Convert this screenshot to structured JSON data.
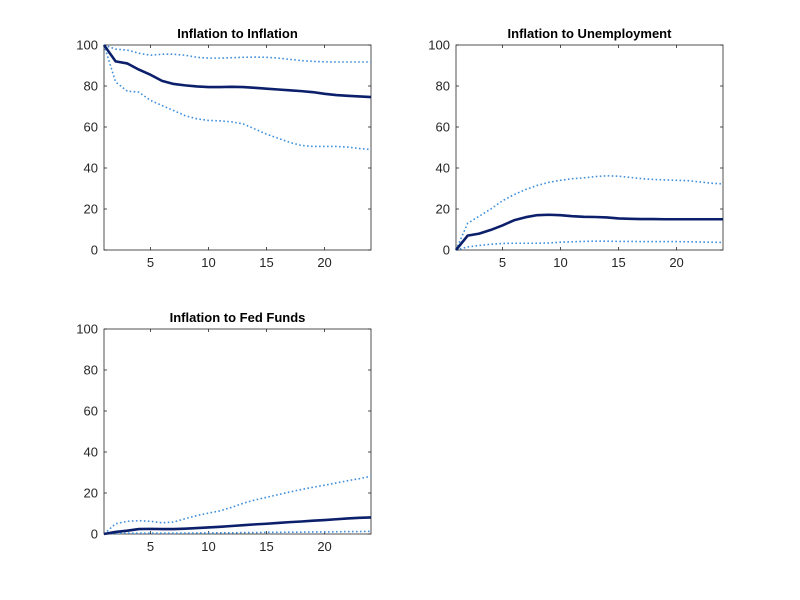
{
  "figure": {
    "background": "#ffffff"
  },
  "chart_data": [
    {
      "type": "line",
      "title": "Inflation to Inflation",
      "xlabel": "",
      "ylabel": "",
      "xlim": [
        1,
        24
      ],
      "ylim": [
        0,
        100
      ],
      "xticks": [
        5,
        10,
        15,
        20
      ],
      "yticks": [
        0,
        20,
        40,
        60,
        80,
        100
      ],
      "grid": false,
      "x": [
        1,
        2,
        3,
        4,
        5,
        6,
        7,
        8,
        9,
        10,
        11,
        12,
        13,
        14,
        15,
        16,
        17,
        18,
        19,
        20,
        21,
        22,
        23,
        24
      ],
      "series": [
        {
          "role": "response",
          "style": "solid",
          "color": "#0b1f6b",
          "values": [
            100,
            92,
            91,
            88,
            85.5,
            82.5,
            81,
            80.3,
            79.8,
            79.5,
            79.5,
            79.6,
            79.5,
            79.1,
            78.7,
            78.3,
            77.9,
            77.5,
            77,
            76.2,
            75.6,
            75.2,
            74.9,
            74.6
          ]
        },
        {
          "role": "upper-band",
          "style": "dotted",
          "color": "#3f8fdc",
          "values": [
            100,
            98,
            97.5,
            96,
            95,
            95.5,
            95.5,
            95,
            94,
            93.6,
            93.6,
            93.8,
            94,
            94.1,
            94,
            93.6,
            93,
            92.4,
            92,
            91.8,
            91.7,
            91.7,
            91.7,
            91.7
          ]
        },
        {
          "role": "lower-band",
          "style": "dotted",
          "color": "#3f8fdc",
          "values": [
            100,
            82,
            77.5,
            77,
            73,
            70.5,
            68,
            65.5,
            64,
            63.2,
            63,
            62.5,
            61.5,
            59,
            56.5,
            54.5,
            52.5,
            51,
            50.5,
            50.5,
            50.5,
            50.2,
            49.5,
            49
          ]
        }
      ]
    },
    {
      "type": "line",
      "title": "Inflation to Unemployment",
      "xlabel": "",
      "ylabel": "",
      "xlim": [
        1,
        24
      ],
      "ylim": [
        0,
        100
      ],
      "xticks": [
        5,
        10,
        15,
        20
      ],
      "yticks": [
        0,
        20,
        40,
        60,
        80,
        100
      ],
      "grid": false,
      "x": [
        1,
        2,
        3,
        4,
        5,
        6,
        7,
        8,
        9,
        10,
        11,
        12,
        13,
        14,
        15,
        16,
        17,
        18,
        19,
        20,
        21,
        22,
        23,
        24
      ],
      "series": [
        {
          "role": "response",
          "style": "solid",
          "color": "#0b1f6b",
          "values": [
            0,
            7,
            8,
            9.8,
            12,
            14.5,
            16,
            17,
            17.2,
            17,
            16.5,
            16.2,
            16.1,
            15.9,
            15.4,
            15.2,
            15.1,
            15.1,
            15,
            15,
            15,
            15,
            15,
            15
          ]
        },
        {
          "role": "upper-band",
          "style": "dotted",
          "color": "#3f8fdc",
          "values": [
            0,
            13,
            16.5,
            20,
            24,
            27,
            29.5,
            31.5,
            33,
            34,
            34.8,
            35.2,
            35.8,
            36.2,
            36,
            35.4,
            34.8,
            34.4,
            34.2,
            34,
            33.8,
            33.2,
            32.6,
            32.2
          ]
        },
        {
          "role": "lower-band",
          "style": "dotted",
          "color": "#3f8fdc",
          "values": [
            0,
            1.5,
            2.2,
            2.8,
            3.2,
            3.3,
            3.3,
            3.3,
            3.4,
            3.8,
            4,
            4.2,
            4.3,
            4.3,
            4.2,
            4.2,
            4.1,
            4.1,
            4.1,
            4.1,
            4,
            3.9,
            3.8,
            3.7
          ]
        }
      ]
    },
    {
      "type": "line",
      "title": "Inflation to Fed Funds",
      "xlabel": "",
      "ylabel": "",
      "xlim": [
        1,
        24
      ],
      "ylim": [
        0,
        100
      ],
      "xticks": [
        5,
        10,
        15,
        20
      ],
      "yticks": [
        0,
        20,
        40,
        60,
        80,
        100
      ],
      "grid": false,
      "x": [
        1,
        2,
        3,
        4,
        5,
        6,
        7,
        8,
        9,
        10,
        11,
        12,
        13,
        14,
        15,
        16,
        17,
        18,
        19,
        20,
        21,
        22,
        23,
        24
      ],
      "series": [
        {
          "role": "response",
          "style": "solid",
          "color": "#0b1f6b",
          "values": [
            0,
            1,
            1.6,
            2.4,
            2.5,
            2.4,
            2.4,
            2.6,
            2.9,
            3.2,
            3.5,
            3.9,
            4.3,
            4.7,
            5,
            5.4,
            5.8,
            6.1,
            6.5,
            6.8,
            7.2,
            7.6,
            7.9,
            8.1
          ]
        },
        {
          "role": "upper-band",
          "style": "dotted",
          "color": "#3f8fdc",
          "values": [
            0,
            5,
            6.2,
            6.5,
            6.2,
            5.5,
            5.8,
            7.5,
            9,
            10.2,
            11.3,
            13,
            15,
            16.6,
            17.9,
            19.2,
            20.5,
            21.7,
            22.8,
            23.8,
            24.9,
            26,
            27,
            28.2
          ]
        },
        {
          "role": "lower-band",
          "style": "dotted",
          "color": "#3f8fdc",
          "values": [
            0,
            0.3,
            0.4,
            0.4,
            0.4,
            0.4,
            0.4,
            0.4,
            0.5,
            0.5,
            0.6,
            0.6,
            0.7,
            0.7,
            0.8,
            0.8,
            0.9,
            0.9,
            1,
            1,
            1.1,
            1.2,
            1.2,
            1.3
          ]
        }
      ]
    }
  ]
}
